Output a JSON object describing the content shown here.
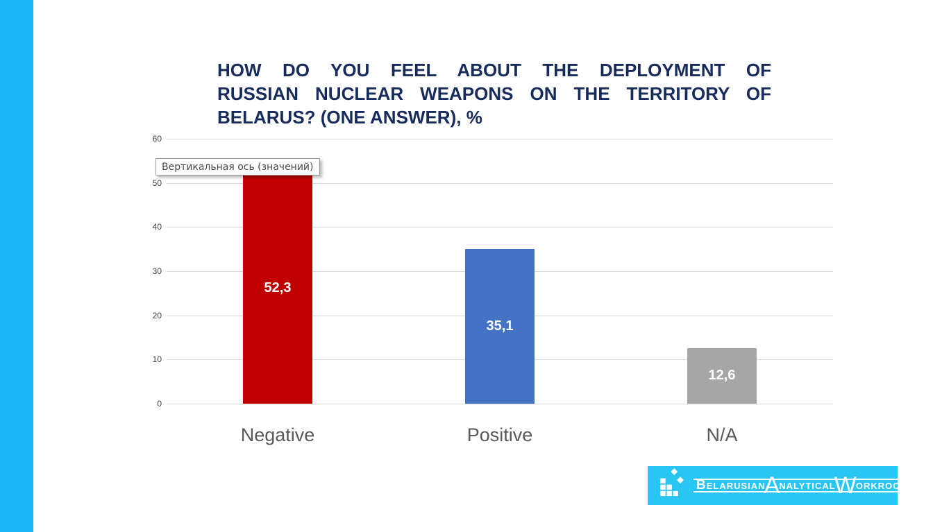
{
  "title": {
    "lines": [
      "HOW DO YOU FEEL ABOUT THE DEPLOYMENT OF",
      "RUSSIAN NUCLEAR WEAPONS ON THE TERRITORY OF",
      "BELARUS? (ONE ANSWER), %"
    ]
  },
  "tooltip": {
    "text": "Вертикальная ось (значений)"
  },
  "chart_data": {
    "type": "bar",
    "title": "HOW DO YOU FEEL ABOUT THE DEPLOYMENT OF RUSSIAN NUCLEAR WEAPONS ON THE TERRITORY OF BELARUS? (ONE ANSWER), %",
    "categories": [
      "Negative",
      "Positive",
      "N/A"
    ],
    "values": [
      52.3,
      35.1,
      12.6
    ],
    "value_labels": [
      "52,3",
      "35,1",
      "12,6"
    ],
    "bar_colors": [
      "#c00000",
      "#4472c4",
      "#a6a6a6"
    ],
    "xlabel": "",
    "ylabel": "",
    "ylim": [
      0,
      60
    ],
    "yticks": [
      0,
      10,
      20,
      30,
      40,
      50,
      60
    ],
    "grid": true,
    "legend": false
  },
  "logo": {
    "parts": [
      "B",
      "ELARUSIAN",
      "A",
      "NALYTICAL",
      "W",
      "ORKROOM"
    ]
  },
  "colors": {
    "stripe": "#1ab6f5",
    "logo_background": "#29c5f3",
    "title_text": "#172b5c",
    "gridline": "#d9d9d9",
    "bar_negative": "#c00000",
    "bar_positive": "#4472c4",
    "bar_na": "#a6a6a6"
  }
}
